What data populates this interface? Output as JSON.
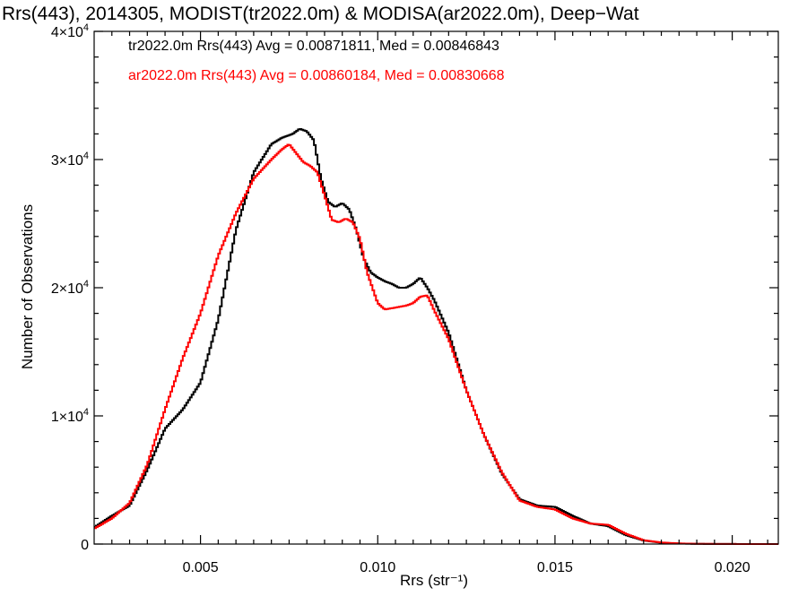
{
  "chart_data": {
    "type": "line",
    "title": "Rrs(443), 2014305, MODIST(tr2022.0m) & MODISA(ar2022.0m), Deep−Wat",
    "xlabel": "Rrs (str⁻¹)",
    "ylabel": "Number of Observations",
    "xlim": [
      0.002,
      0.0213
    ],
    "ylim": [
      0,
      40000
    ],
    "x_ticks": [
      {
        "value": 0.005,
        "label": "0.005"
      },
      {
        "value": 0.01,
        "label": "0.010"
      },
      {
        "value": 0.015,
        "label": "0.015"
      },
      {
        "value": 0.02,
        "label": "0.020"
      }
    ],
    "y_ticks": [
      {
        "value": 0,
        "base": "0",
        "exp": ""
      },
      {
        "value": 10000,
        "base": "1×10",
        "exp": "4"
      },
      {
        "value": 20000,
        "base": "2×10",
        "exp": "4"
      },
      {
        "value": 30000,
        "base": "3×10",
        "exp": "4"
      },
      {
        "value": 40000,
        "base": "4×10",
        "exp": "4"
      }
    ],
    "step_style": "histogram",
    "grid": false,
    "stats": [
      {
        "text": "tr2022.0m Rrs(443) Avg = 0.00871811, Med = 0.00846843",
        "color": "#000000"
      },
      {
        "text": "ar2022.0m Rrs(443) Avg = 0.00860184, Med = 0.00830668",
        "color": "#ff0000"
      }
    ],
    "series": [
      {
        "color": "#000000",
        "x": [
          0.002,
          0.0025,
          0.003,
          0.0035,
          0.004,
          0.0045,
          0.005,
          0.0055,
          0.006,
          0.0065,
          0.007,
          0.0073,
          0.0076,
          0.0078,
          0.008,
          0.0082,
          0.0084,
          0.0086,
          0.0088,
          0.009,
          0.0092,
          0.0094,
          0.0096,
          0.0098,
          0.01,
          0.0102,
          0.0104,
          0.0106,
          0.0108,
          0.011,
          0.0112,
          0.0114,
          0.0116,
          0.012,
          0.0125,
          0.013,
          0.0135,
          0.014,
          0.0145,
          0.015,
          0.0155,
          0.016,
          0.0165,
          0.017,
          0.0175,
          0.018,
          0.0185,
          0.019,
          0.02,
          0.0213
        ],
        "y": [
          1300,
          2200,
          3000,
          5800,
          9000,
          10500,
          12600,
          17500,
          24500,
          29000,
          31200,
          31700,
          32000,
          32400,
          32200,
          31500,
          28500,
          26700,
          26300,
          26600,
          26100,
          24500,
          22300,
          21200,
          20800,
          20500,
          20300,
          20000,
          20000,
          20300,
          20800,
          20000,
          19000,
          16500,
          12000,
          8500,
          5500,
          3500,
          3000,
          2900,
          2200,
          1600,
          1400,
          700,
          280,
          100,
          40,
          15,
          5,
          0
        ]
      },
      {
        "color": "#ff0000",
        "x": [
          0.002,
          0.0025,
          0.003,
          0.0035,
          0.004,
          0.0045,
          0.005,
          0.0055,
          0.006,
          0.0065,
          0.007,
          0.0073,
          0.0075,
          0.0077,
          0.0079,
          0.0081,
          0.0083,
          0.0085,
          0.0087,
          0.0089,
          0.0091,
          0.0093,
          0.0095,
          0.0097,
          0.01,
          0.0102,
          0.0104,
          0.0106,
          0.0108,
          0.011,
          0.0112,
          0.0114,
          0.0116,
          0.012,
          0.0125,
          0.013,
          0.0135,
          0.014,
          0.0145,
          0.015,
          0.0155,
          0.016,
          0.0165,
          0.017,
          0.0175,
          0.018,
          0.0185,
          0.019,
          0.02,
          0.0213
        ],
        "y": [
          1200,
          2000,
          3200,
          6200,
          10500,
          14500,
          18000,
          22500,
          25800,
          28500,
          30000,
          30800,
          31200,
          30500,
          29800,
          29500,
          29000,
          27200,
          25300,
          25100,
          25400,
          25100,
          23800,
          21200,
          18800,
          18300,
          18400,
          18500,
          18600,
          18800,
          19300,
          19400,
          18200,
          16000,
          12000,
          8500,
          5600,
          3400,
          2900,
          2700,
          2000,
          1600,
          1500,
          800,
          300,
          120,
          50,
          20,
          5,
          0
        ]
      }
    ]
  }
}
